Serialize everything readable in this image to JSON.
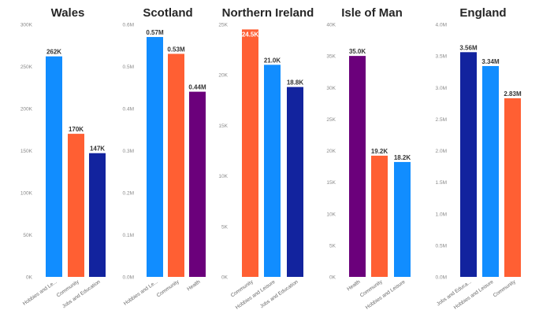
{
  "colors": {
    "light_blue": "#118DFF",
    "orange": "#FF5F33",
    "dark_blue": "#12239E",
    "purple": "#6B007B"
  },
  "chart_data": [
    {
      "type": "bar",
      "title": "Wales",
      "categories": [
        "Hobbies and Le...",
        "Community",
        "Jobs and Education"
      ],
      "values": [
        262000,
        170000,
        147000
      ],
      "data_labels": [
        "262K",
        "170K",
        "147K"
      ],
      "bar_colors": [
        "#118DFF",
        "#FF5F33",
        "#12239E"
      ],
      "ylim": [
        0,
        300000
      ],
      "yticks": [
        0,
        50000,
        100000,
        150000,
        200000,
        250000,
        300000
      ],
      "ytick_labels": [
        "0K",
        "50K",
        "100K",
        "150K",
        "200K",
        "250K",
        "300K"
      ],
      "grid": false,
      "xlabel": "",
      "ylabel": ""
    },
    {
      "type": "bar",
      "title": "Scotland",
      "categories": [
        "Hobbies and Le...",
        "Community",
        "Health"
      ],
      "values": [
        0.57,
        0.53,
        0.44
      ],
      "data_labels": [
        "0.57M",
        "0.53M",
        "0.44M"
      ],
      "bar_colors": [
        "#118DFF",
        "#FF5F33",
        "#6B007B"
      ],
      "ylim": [
        0,
        0.6
      ],
      "yticks": [
        0,
        0.1,
        0.2,
        0.3,
        0.4,
        0.5,
        0.6
      ],
      "ytick_labels": [
        "0.0M",
        "0.1M",
        "0.2M",
        "0.3M",
        "0.4M",
        "0.5M",
        "0.6M"
      ],
      "grid": false,
      "xlabel": "",
      "ylabel": ""
    },
    {
      "type": "bar",
      "title": "Northern Ireland",
      "categories": [
        "Community",
        "Hobbies and Leisure",
        "Jobs and Education"
      ],
      "values": [
        24500,
        21000,
        18800
      ],
      "data_labels": [
        "24.5K",
        "21.0K",
        "18.8K"
      ],
      "bar_colors": [
        "#FF5F33",
        "#118DFF",
        "#12239E"
      ],
      "ylim": [
        0,
        25000
      ],
      "yticks": [
        0,
        5000,
        10000,
        15000,
        20000,
        25000
      ],
      "ytick_labels": [
        "0K",
        "5K",
        "10K",
        "15K",
        "20K",
        "25K"
      ],
      "grid": false,
      "xlabel": "",
      "ylabel": ""
    },
    {
      "type": "bar",
      "title": "Isle of Man",
      "categories": [
        "Health",
        "Community",
        "Hobbies and Leisure"
      ],
      "values": [
        35000,
        19200,
        18200
      ],
      "data_labels": [
        "35.0K",
        "19.2K",
        "18.2K"
      ],
      "bar_colors": [
        "#6B007B",
        "#FF5F33",
        "#118DFF"
      ],
      "ylim": [
        0,
        40000
      ],
      "yticks": [
        0,
        5000,
        10000,
        15000,
        20000,
        25000,
        30000,
        35000,
        40000
      ],
      "ytick_labels": [
        "0K",
        "5K",
        "10K",
        "15K",
        "20K",
        "25K",
        "30K",
        "35K",
        "40K"
      ],
      "grid": false,
      "xlabel": "",
      "ylabel": ""
    },
    {
      "type": "bar",
      "title": "England",
      "categories": [
        "Jobs and Educa...",
        "Hobbies and Leisure",
        "Community"
      ],
      "values": [
        3.56,
        3.34,
        2.83
      ],
      "data_labels": [
        "3.56M",
        "3.34M",
        "2.83M"
      ],
      "bar_colors": [
        "#12239E",
        "#118DFF",
        "#FF5F33"
      ],
      "ylim": [
        0,
        4.0
      ],
      "yticks": [
        0,
        0.5,
        1.0,
        1.5,
        2.0,
        2.5,
        3.0,
        3.5,
        4.0
      ],
      "ytick_labels": [
        "0.0M",
        "0.5M",
        "1.0M",
        "1.5M",
        "2.0M",
        "2.5M",
        "3.0M",
        "3.5M",
        "4.0M"
      ],
      "grid": false,
      "xlabel": "",
      "ylabel": ""
    }
  ]
}
